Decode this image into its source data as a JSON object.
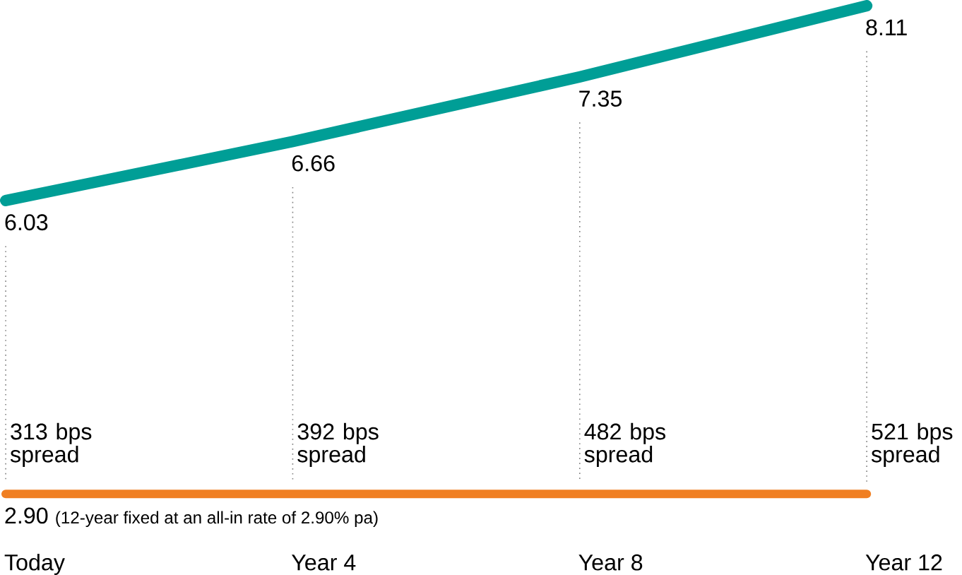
{
  "chart_data": {
    "type": "line",
    "categories": [
      "Today",
      "Year 4",
      "Year 8",
      "Year 12"
    ],
    "series": [
      {
        "color": "#009e96",
        "values": [
          6.03,
          6.66,
          7.35,
          8.11
        ],
        "value_labels": [
          "6.03",
          "6.66",
          "7.35",
          "8.11"
        ]
      },
      {
        "color": "#f07f22",
        "values": [
          2.9,
          2.9,
          2.9,
          2.9
        ],
        "value_labels": [
          "2.90",
          null,
          null,
          null
        ]
      }
    ],
    "annotations": [
      "(12-year fixed at an all-in rate of 2.90% pa)",
      "313 bps spread",
      "392 bps spread",
      "482 bps spread",
      "521 bps spread"
    ]
  }
}
